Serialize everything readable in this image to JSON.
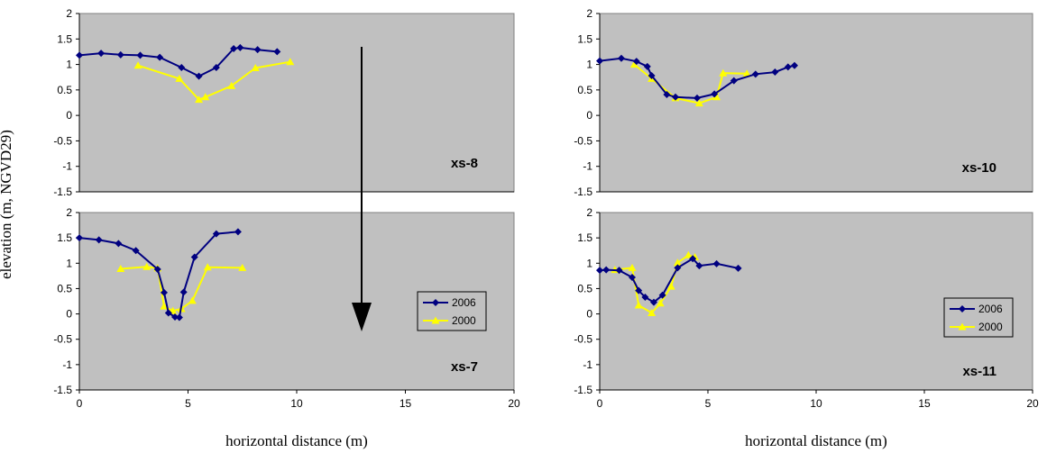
{
  "figure": {
    "ylabel": "elevation (m, NGVD29)",
    "xlabel_left": "horizontal distance (m)",
    "xlabel_right": "horizontal distance (m)"
  },
  "colors": {
    "plot_bg": "#c0c0c0",
    "series_2006": "#000080",
    "series_2000": "#ffff00",
    "arrow": "#000000"
  },
  "chart_data": [
    {
      "type": "line",
      "label": "xs-8",
      "xlim": [
        0,
        20
      ],
      "ylim": [
        -1.5,
        2
      ],
      "xticks": [],
      "yticks": [
        -1.5,
        -1,
        -0.5,
        0,
        0.5,
        1,
        1.5,
        2
      ],
      "legend": false,
      "series": [
        {
          "name": "2006",
          "marker": "diamond",
          "x": [
            0,
            1,
            1.9,
            2.8,
            3.7,
            4.7,
            5.5,
            6.3,
            7.1,
            7.4,
            8.2,
            9.1
          ],
          "y": [
            1.18,
            1.22,
            1.19,
            1.18,
            1.14,
            0.94,
            0.77,
            0.94,
            1.31,
            1.33,
            1.29,
            1.25
          ]
        },
        {
          "name": "2000",
          "marker": "triangle",
          "x": [
            2.7,
            4.6,
            5.5,
            5.8,
            7.0,
            8.1,
            9.7
          ],
          "y": [
            0.98,
            0.72,
            0.31,
            0.36,
            0.58,
            0.93,
            1.05
          ]
        }
      ]
    },
    {
      "type": "line",
      "label": "xs-10",
      "xlim": [
        0,
        20
      ],
      "ylim": [
        -1.5,
        2
      ],
      "xticks": [],
      "yticks": [
        -1.5,
        -1,
        -0.5,
        0,
        0.5,
        1,
        1.5,
        2
      ],
      "legend": false,
      "series": [
        {
          "name": "2006",
          "marker": "diamond",
          "x": [
            0,
            1.0,
            1.7,
            2.2,
            2.4,
            3.1,
            3.5,
            4.5,
            5.3,
            6.2,
            7.2,
            8.1,
            8.7,
            9.0
          ],
          "y": [
            1.07,
            1.12,
            1.06,
            0.96,
            0.78,
            0.41,
            0.36,
            0.34,
            0.42,
            0.68,
            0.81,
            0.85,
            0.95,
            0.98
          ]
        },
        {
          "name": "2000",
          "marker": "triangle",
          "x": [
            1.6,
            2.4,
            3.5,
            4.6,
            5.4,
            5.7,
            6.8
          ],
          "y": [
            1.0,
            0.72,
            0.34,
            0.24,
            0.36,
            0.83,
            0.82
          ]
        }
      ]
    },
    {
      "type": "line",
      "label": "xs-7",
      "xlim": [
        0,
        20
      ],
      "ylim": [
        -1.5,
        2
      ],
      "xticks": [
        0,
        5,
        10,
        15,
        20
      ],
      "yticks": [
        -1.5,
        -1,
        -0.5,
        0,
        0.5,
        1,
        1.5,
        2
      ],
      "legend": true,
      "series": [
        {
          "name": "2006",
          "marker": "diamond",
          "x": [
            0,
            0.9,
            1.8,
            2.6,
            3.6,
            3.9,
            4.1,
            4.4,
            4.6,
            4.8,
            5.3,
            6.3,
            7.3
          ],
          "y": [
            1.5,
            1.46,
            1.39,
            1.25,
            0.88,
            0.42,
            0.02,
            -0.06,
            -0.07,
            0.43,
            1.12,
            1.58,
            1.62
          ]
        },
        {
          "name": "2000",
          "marker": "triangle",
          "x": [
            1.9,
            3.1,
            3.6,
            3.9,
            4.3,
            4.7,
            5.2,
            5.9,
            7.5
          ],
          "y": [
            0.89,
            0.93,
            0.9,
            0.15,
            0.06,
            0.1,
            0.26,
            0.92,
            0.91
          ]
        }
      ]
    },
    {
      "type": "line",
      "label": "xs-11",
      "xlim": [
        0,
        20
      ],
      "ylim": [
        -1.5,
        2
      ],
      "xticks": [
        0,
        5,
        10,
        15,
        20
      ],
      "yticks": [
        -1.5,
        -1,
        -0.5,
        0,
        0.5,
        1,
        1.5,
        2
      ],
      "legend": true,
      "series": [
        {
          "name": "2006",
          "marker": "diamond",
          "x": [
            0,
            0.3,
            0.9,
            1.5,
            1.8,
            2.1,
            2.5,
            2.9,
            3.6,
            4.3,
            4.6,
            5.4,
            6.4
          ],
          "y": [
            0.86,
            0.87,
            0.86,
            0.72,
            0.46,
            0.33,
            0.23,
            0.37,
            0.91,
            1.09,
            0.95,
            0.99,
            0.9
          ]
        },
        {
          "name": "2000",
          "marker": "triangle",
          "x": [
            0.7,
            1.5,
            1.8,
            2.4,
            2.8,
            3.3,
            3.6,
            4.1,
            4.4
          ],
          "y": [
            0.87,
            0.91,
            0.17,
            0.02,
            0.21,
            0.54,
            1.01,
            1.16,
            1.12
          ]
        }
      ]
    }
  ]
}
